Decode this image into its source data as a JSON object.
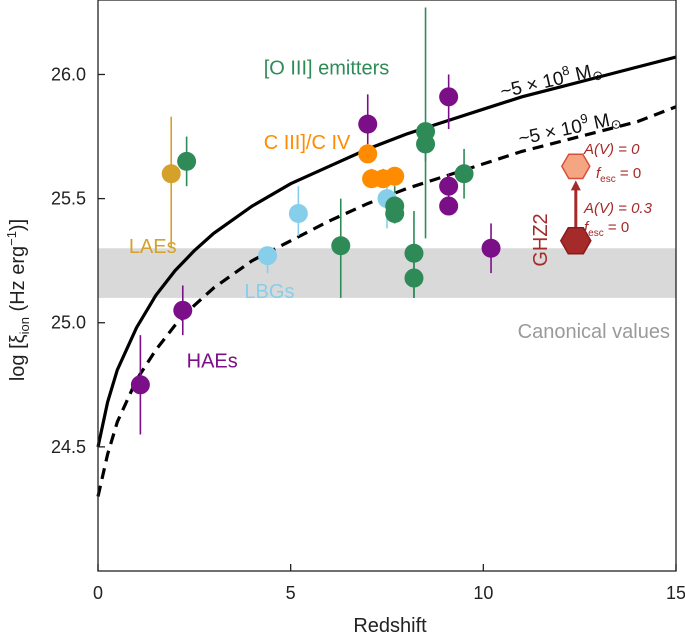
{
  "chart_data": {
    "type": "scatter",
    "xlabel": "Redshift",
    "ylabel_parts": {
      "prefix": "log [",
      "xi": "ξ",
      "xi_sub": "ion",
      "unit_open": " (Hz erg",
      "unit_exp": "−1",
      "unit_close": ")]"
    },
    "xlim": [
      0,
      15
    ],
    "ylim": [
      24.0,
      26.3
    ],
    "xticks": [
      0,
      5,
      10,
      15
    ],
    "xtick_labels": [
      "0",
      "5",
      "10",
      "15"
    ],
    "yticks": [
      24.5,
      25.0,
      25.5,
      26.0
    ],
    "ytick_labels": [
      "24.5",
      "25.0",
      "25.5",
      "26.0"
    ],
    "canonical_band": {
      "ymin": 25.1,
      "ymax": 25.3,
      "color": "#d9d9d9",
      "label": "Canonical values"
    },
    "curves": [
      {
        "name": "solid",
        "style": "solid",
        "label_prefix": "~5 × 10",
        "label_exp": "8",
        "label_suffix": " M",
        "label_sym": "⊙",
        "x": [
          0,
          0.25,
          0.5,
          1,
          1.5,
          2,
          2.5,
          3,
          4,
          5,
          6,
          7,
          8,
          9,
          10,
          11,
          12,
          13,
          14,
          15
        ],
        "y": [
          24.5,
          24.68,
          24.81,
          24.98,
          25.11,
          25.21,
          25.29,
          25.36,
          25.47,
          25.56,
          25.63,
          25.7,
          25.76,
          25.81,
          25.86,
          25.91,
          25.95,
          25.99,
          26.03,
          26.07
        ]
      },
      {
        "name": "dashed",
        "style": "dashed",
        "label_prefix": "~5 × 10",
        "label_exp": "9",
        "label_suffix": " M",
        "label_sym": "⊙",
        "x": [
          0,
          0.25,
          0.5,
          1,
          1.5,
          2,
          2.5,
          3,
          4,
          5,
          6,
          7,
          8,
          9,
          10,
          11,
          12,
          13,
          14,
          15
        ],
        "y": [
          24.3,
          24.47,
          24.6,
          24.77,
          24.89,
          24.99,
          25.07,
          25.14,
          25.25,
          25.33,
          25.41,
          25.48,
          25.54,
          25.59,
          25.64,
          25.69,
          25.73,
          25.77,
          25.81,
          25.87
        ]
      }
    ],
    "series": [
      {
        "name": "HAEs",
        "color": "#7b0f87",
        "label_x": 2.3,
        "label_y": 24.82,
        "points": [
          {
            "x": 1.1,
            "y": 24.75,
            "lo": 24.55,
            "hi": 24.95
          },
          {
            "x": 2.2,
            "y": 25.05,
            "lo": 24.95,
            "hi": 25.15
          },
          {
            "x": 7.0,
            "y": 25.8,
            "lo": 25.7,
            "hi": 25.92
          },
          {
            "x": 9.1,
            "y": 25.91,
            "lo": 25.78,
            "hi": 26.0
          },
          {
            "x": 9.1,
            "y": 25.55,
            "lo": 25.5,
            "hi": 25.6
          },
          {
            "x": 9.1,
            "y": 25.47,
            "lo": 25.47,
            "hi": 25.47
          },
          {
            "x": 10.2,
            "y": 25.3,
            "lo": 25.2,
            "hi": 25.4
          }
        ]
      },
      {
        "name": "LAEs",
        "color": "#d4a22a",
        "label_x": 0.8,
        "label_y": 25.28,
        "points": [
          {
            "x": 1.9,
            "y": 25.6,
            "lo": 25.3,
            "hi": 25.83
          }
        ]
      },
      {
        "name": "LBGs",
        "color": "#87ceeb",
        "label_x": 3.8,
        "label_y": 25.1,
        "points": [
          {
            "x": 4.4,
            "y": 25.27,
            "lo": 25.2,
            "hi": 25.3
          },
          {
            "x": 5.2,
            "y": 25.44,
            "lo": 25.35,
            "hi": 25.55
          },
          {
            "x": 7.5,
            "y": 25.5,
            "lo": 25.38,
            "hi": 25.6
          }
        ]
      },
      {
        "name": "[O III] emitters",
        "color": "#2e8b57",
        "label_x": 4.3,
        "label_y": 26.0,
        "points": [
          {
            "x": 2.3,
            "y": 25.65,
            "lo": 25.55,
            "hi": 25.75
          },
          {
            "x": 6.3,
            "y": 25.31,
            "lo": 25.1,
            "hi": 25.5
          },
          {
            "x": 7.7,
            "y": 25.47,
            "lo": 25.4,
            "hi": 25.55
          },
          {
            "x": 7.7,
            "y": 25.44,
            "lo": 25.4,
            "hi": 25.48
          },
          {
            "x": 8.2,
            "y": 25.28,
            "lo": 25.1,
            "hi": 25.45
          },
          {
            "x": 8.2,
            "y": 25.18,
            "lo": 25.1,
            "hi": 25.25
          },
          {
            "x": 8.5,
            "y": 25.77,
            "lo": 25.34,
            "hi": 26.27
          },
          {
            "x": 8.5,
            "y": 25.72,
            "lo": 25.65,
            "hi": 25.8
          },
          {
            "x": 9.5,
            "y": 25.6,
            "lo": 25.5,
            "hi": 25.7
          }
        ]
      },
      {
        "name": "C III]/C IV",
        "color": "#ff8c00",
        "label_x": 4.3,
        "label_y": 25.7,
        "points": [
          {
            "x": 7.0,
            "y": 25.68,
            "lo": 25.65,
            "hi": 25.72
          },
          {
            "x": 7.1,
            "y": 25.58,
            "lo": 25.55,
            "hi": 25.62
          },
          {
            "x": 7.4,
            "y": 25.58,
            "lo": 25.55,
            "hi": 25.62
          },
          {
            "x": 7.7,
            "y": 25.59,
            "lo": 25.55,
            "hi": 25.62
          }
        ]
      }
    ],
    "ghz2": {
      "name": "GHZ2",
      "x": 12.4,
      "upper": {
        "y": 25.63,
        "fill": "#f4a582",
        "stroke": "#d94f3a",
        "av_label": "A(V) = 0",
        "fesc_label": "f",
        "fesc_sub": "esc",
        "fesc_val": " = 0"
      },
      "lower": {
        "y": 25.33,
        "fill": "#a52a2a",
        "stroke": "#8b1a1a",
        "av_label": "A(V) = 0.3",
        "fesc_label": "f",
        "fesc_sub": "esc",
        "fesc_val": " = 0"
      },
      "color": "#a52a2a"
    }
  }
}
